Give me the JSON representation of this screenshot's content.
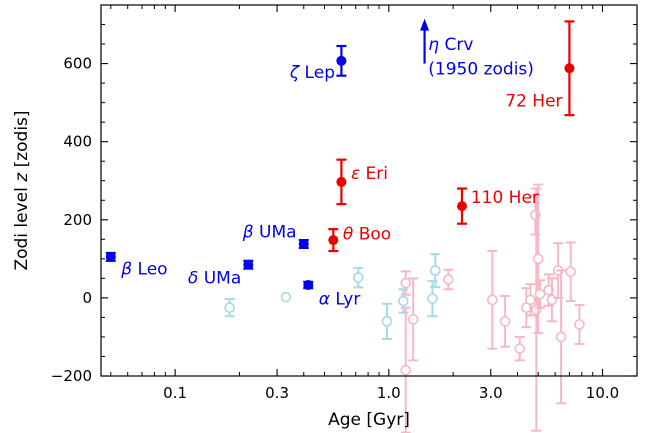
{
  "chart_data": {
    "type": "scatter",
    "xlabel": "Age [Gyr]",
    "ylabel_main": "Zodi level ",
    "ylabel_var": "z",
    "ylabel_unit": " [zodis]",
    "xscale": "log",
    "xlim": [
      0.045,
      14.5
    ],
    "ylim": [
      -200,
      750
    ],
    "xticks": [
      {
        "value": 0.1,
        "label": "0.1"
      },
      {
        "value": 0.3,
        "label": "0.3"
      },
      {
        "value": 1.0,
        "label": "1.0"
      },
      {
        "value": 3.0,
        "label": "3.0"
      },
      {
        "value": 10.0,
        "label": "10.0"
      }
    ],
    "yticks": [
      {
        "value": -200,
        "label": "−200"
      },
      {
        "value": 0,
        "label": "0"
      },
      {
        "value": 200,
        "label": "200"
      },
      {
        "value": 400,
        "label": "400"
      },
      {
        "value": 600,
        "label": "600"
      }
    ],
    "colors": {
      "blue": "#0000ee",
      "red": "#ee0000",
      "light_blue": "#a6d8e6",
      "light_pink": "#f7b8c6"
    },
    "labeled_points": [
      {
        "greek": "β",
        "name": " Leo",
        "x": 0.05,
        "y": 105,
        "err": 10,
        "color": "blue",
        "lx": 0.056,
        "ly": 75,
        "anchor": "start"
      },
      {
        "greek": "δ",
        "name": " UMa",
        "x": 0.22,
        "y": 85,
        "err": 10,
        "color": "blue",
        "lx": 0.204,
        "ly": 52,
        "anchor": "end"
      },
      {
        "greek": "β",
        "name": " UMa",
        "x": 0.4,
        "y": 138,
        "err": 10,
        "color": "blue",
        "lx": 0.37,
        "ly": 170,
        "anchor": "end"
      },
      {
        "greek": "α",
        "name": " Lyr",
        "x": 0.42,
        "y": 33,
        "err": 8,
        "color": "blue",
        "lx": 0.47,
        "ly": -2,
        "anchor": "start"
      },
      {
        "greek": "ζ",
        "name": " Lep",
        "x": 0.6,
        "y": 607,
        "err": 38,
        "color": "blue",
        "lx": 0.56,
        "ly": 578,
        "anchor": "end"
      },
      {
        "greek": "θ",
        "name": " Boo",
        "x": 0.55,
        "y": 148,
        "err": 28,
        "color": "red",
        "lx": 0.61,
        "ly": 165,
        "anchor": "start"
      },
      {
        "greek": "ε",
        "name": " Eri",
        "x": 0.6,
        "y": 297,
        "err": 57,
        "color": "red",
        "lx": 0.665,
        "ly": 320,
        "anchor": "start"
      },
      {
        "greek": "",
        "name": "110 Her",
        "x": 2.2,
        "y": 235,
        "err": 45,
        "color": "red",
        "lx": 2.42,
        "ly": 258,
        "anchor": "start"
      },
      {
        "greek": "",
        "name": "72 Her",
        "x": 7.0,
        "y": 588,
        "err": 120,
        "color": "red",
        "lx": 6.5,
        "ly": 505,
        "anchor": "end"
      }
    ],
    "upper_arrow": {
      "x": 1.47,
      "y_from": 600,
      "y_to": 710,
      "color": "blue",
      "greek": "η",
      "name": " Crv",
      "sub": "(1950 zodis)",
      "lx": 1.53,
      "ly": 650,
      "sub_lx": 1.53,
      "sub_ly": 588
    },
    "faint_points": [
      {
        "x": 0.18,
        "y": -25,
        "err": 22,
        "color": "light_blue"
      },
      {
        "x": 0.33,
        "y": 2,
        "err": 0,
        "color": "light_blue"
      },
      {
        "x": 0.72,
        "y": 52,
        "err": 25,
        "color": "light_blue"
      },
      {
        "x": 0.98,
        "y": -60,
        "err": 45,
        "color": "light_blue"
      },
      {
        "x": 1.17,
        "y": -8,
        "err": 30,
        "color": "light_blue"
      },
      {
        "x": 1.6,
        "y": -2,
        "err": 45,
        "color": "light_blue"
      },
      {
        "x": 1.65,
        "y": 70,
        "err": 42,
        "color": "light_blue"
      },
      {
        "x": 1.2,
        "y": 38,
        "err": 30,
        "color": "light_pink"
      },
      {
        "x": 1.2,
        "y": -185,
        "err": 160,
        "color": "light_pink"
      },
      {
        "x": 1.3,
        "y": -55,
        "err": 105,
        "color": "light_pink"
      },
      {
        "x": 1.9,
        "y": 47,
        "err": 25,
        "color": "light_pink"
      },
      {
        "x": 3.05,
        "y": -5,
        "err": 125,
        "color": "light_pink"
      },
      {
        "x": 3.5,
        "y": -60,
        "err": 65,
        "color": "light_pink"
      },
      {
        "x": 4.1,
        "y": -130,
        "err": 30,
        "color": "light_pink"
      },
      {
        "x": 4.4,
        "y": -25,
        "err": 50,
        "color": "light_pink"
      },
      {
        "x": 4.6,
        "y": -5,
        "err": 40,
        "color": "light_pink"
      },
      {
        "x": 4.85,
        "y": 212,
        "err": 50,
        "color": "light_pink"
      },
      {
        "x": 4.9,
        "y": -30,
        "err": 310,
        "color": "light_pink"
      },
      {
        "x": 5.0,
        "y": 100,
        "err": 190,
        "color": "light_pink"
      },
      {
        "x": 5.1,
        "y": 10,
        "err": 35,
        "color": "light_pink"
      },
      {
        "x": 5.6,
        "y": 20,
        "err": 40,
        "color": "light_pink"
      },
      {
        "x": 5.8,
        "y": -5,
        "err": 55,
        "color": "light_pink"
      },
      {
        "x": 6.2,
        "y": 70,
        "err": 70,
        "color": "light_pink"
      },
      {
        "x": 6.4,
        "y": -100,
        "err": 170,
        "color": "light_pink"
      },
      {
        "x": 7.1,
        "y": 67,
        "err": 75,
        "color": "light_pink"
      },
      {
        "x": 7.8,
        "y": -68,
        "err": 50,
        "color": "light_pink"
      }
    ]
  }
}
